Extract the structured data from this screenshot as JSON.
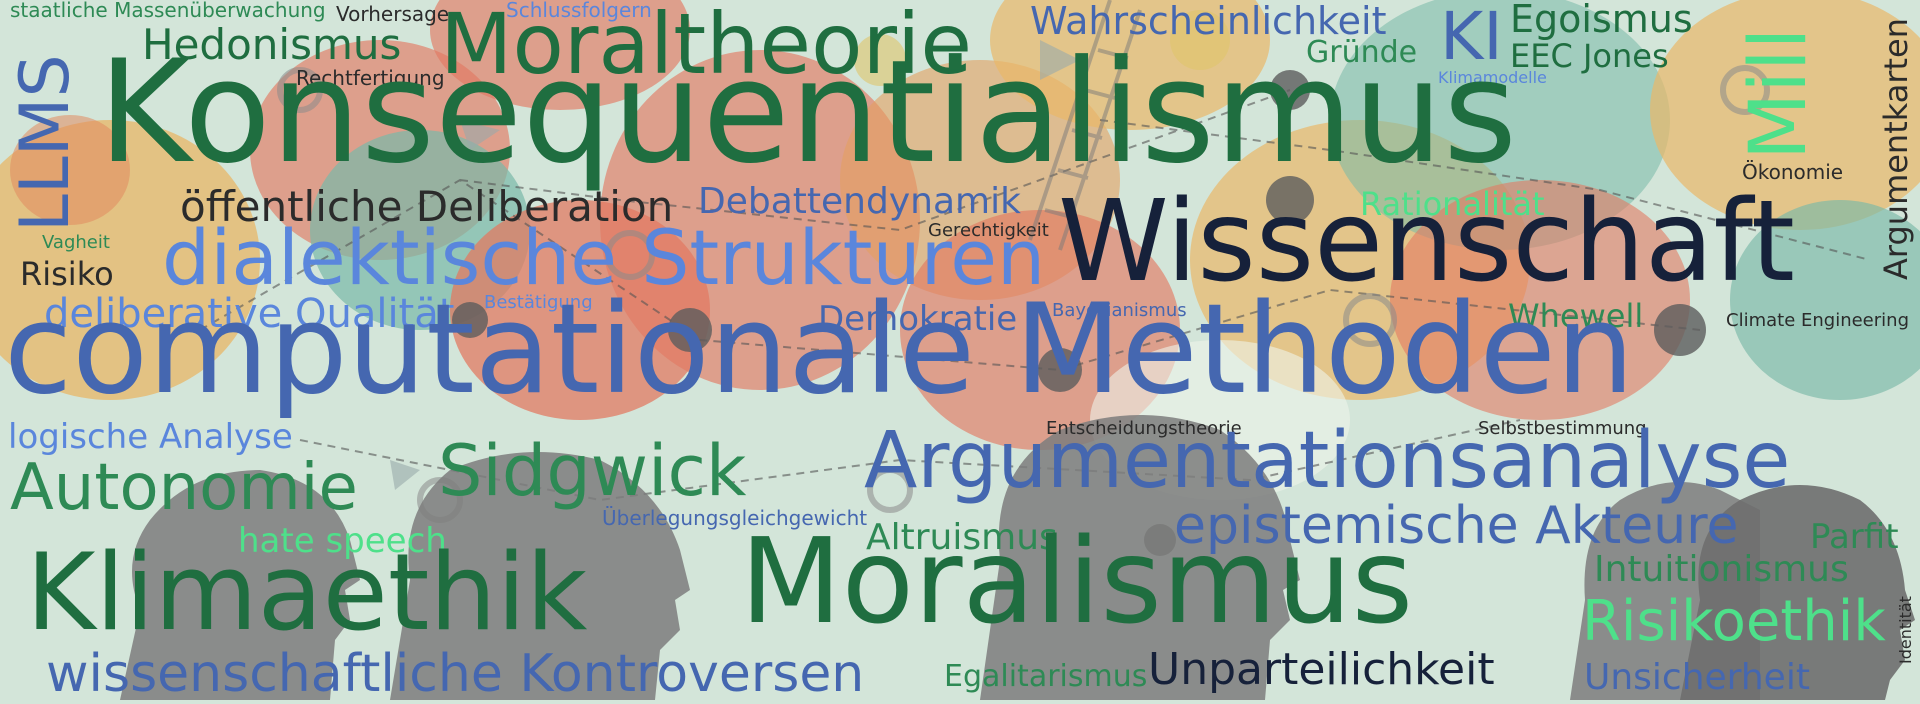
{
  "palette": {
    "dark_green": "#1f6e40",
    "mid_green": "#2e8a55",
    "light_green": "#4ee08a",
    "blue": "#4567b0",
    "light_blue": "#5a86dc",
    "navy": "#16213a",
    "gray_text": "#2b2b2b",
    "background": "#d4e6da"
  },
  "background_icons": [
    "speech-bubble",
    "gear",
    "head-silhouette",
    "ladder",
    "network-node",
    "arrow"
  ],
  "words": {
    "staatliche_massenueberwachung": "staatliche Massenüberwachung",
    "vorhersage": "Vorhersage",
    "schlussfolgern": "Schlussfolgern",
    "wahrscheinlichkeit": "Wahrscheinlichkeit",
    "ki": "KI",
    "egoismus": "Egoismus",
    "mill": "Mill",
    "hedonismus": "Hedonismus",
    "moraltheorie": "Moraltheorie",
    "gruende": "Gründe",
    "eec_jones": "EEC Jones",
    "klimamodelle": "Klimamodelle",
    "rechtfertigung": "Rechtfertigung",
    "llms": "LLMS",
    "konsequentialismus": "Konsequentialismus",
    "argumentkarten": "Argumentkarten",
    "oekonomie": "Ökonomie",
    "oeffentliche_deliberation": "öffentliche Deliberation",
    "debattendynamik": "Debattendynamik",
    "rationalitaet": "Rationalität",
    "gerechtigkeit": "Gerechtigkeit",
    "wissenschaft": "Wissenschaft",
    "vagheit": "Vagheit",
    "dialektische_strukturen": "dialektische Strukturen",
    "risiko": "Risiko",
    "deliberative_qualitaet": "deliberative Qualität",
    "bestaetigung": "Bestätigung",
    "demokratie": "Demokratie",
    "bayesianismus": "Bayesianismus",
    "whewell": "Whewell",
    "climate_engineering": "Climate Engineering",
    "computationale_methoden": "computationale Methoden",
    "entscheidungstheorie": "Entscheidungstheorie",
    "selbstbestimmung": "Selbstbestimmung",
    "logische_analyse": "logische Analyse",
    "argumentationsanalyse": "Argumentationsanalyse",
    "sidgwick": "Sidgwick",
    "autonomie": "Autonomie",
    "ueberlegungsgleichgewicht": "Überlegungsgleichgewicht",
    "epistemische_akteure": "epistemische Akteure",
    "hate_speech": "hate speech",
    "altruismus": "Altruismus",
    "parfit": "Parfit",
    "intuitionismus": "Intuitionismus",
    "klimaethik": "Klimaethik",
    "moralismus": "Moralismus",
    "risikoethik": "Risikoethik",
    "identitaet": "Identität",
    "wissenschaftliche_kontroversen": "wissenschaftliche Kontroversen",
    "egalitarismus": "Egalitarismus",
    "unparteilichkeit": "Unparteilichkeit",
    "unsicherheit": "Unsicherheit"
  }
}
